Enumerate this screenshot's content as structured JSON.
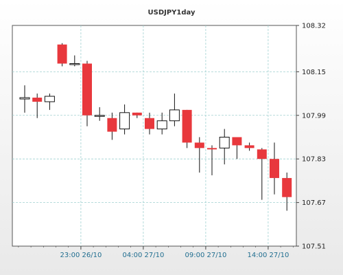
{
  "chart_data": {
    "type": "candlestick",
    "title": "USDJPY1day",
    "xlabel": "",
    "ylabel": "",
    "grid": true,
    "legend": "none",
    "ylim": [
      107.51,
      108.32
    ],
    "y_ticks": [
      "108.32",
      "108.15",
      "107.99",
      "107.83",
      "107.67",
      "107.51"
    ],
    "x_tick_labels": [
      {
        "index": 4.5,
        "label": "23:00 26/10"
      },
      {
        "index": 9.5,
        "label": "04:00 27/10"
      },
      {
        "index": 14.5,
        "label": "09:00 27/10"
      },
      {
        "index": 19.5,
        "label": "14:00 27/10"
      }
    ],
    "colors": {
      "up": "#ffffff",
      "down": "#e8383d",
      "outline": "#111111",
      "grid": "#9fd0d0",
      "axis": "#444444"
    },
    "candles": [
      {
        "open": 108.05,
        "high": 108.1,
        "low": 108.0,
        "close": 108.055
      },
      {
        "open": 108.055,
        "high": 108.07,
        "low": 107.98,
        "close": 108.04
      },
      {
        "open": 108.04,
        "high": 108.07,
        "low": 108.01,
        "close": 108.06
      },
      {
        "open": 108.25,
        "high": 108.255,
        "low": 108.17,
        "close": 108.18
      },
      {
        "open": 108.18,
        "high": 108.21,
        "low": 108.17,
        "close": 108.18
      },
      {
        "open": 108.18,
        "high": 108.19,
        "low": 107.95,
        "close": 107.99
      },
      {
        "open": 107.99,
        "high": 108.02,
        "low": 107.97,
        "close": 107.99
      },
      {
        "open": 107.98,
        "high": 108.0,
        "low": 107.9,
        "close": 107.93
      },
      {
        "open": 107.94,
        "high": 108.03,
        "low": 107.92,
        "close": 108.0
      },
      {
        "open": 108.0,
        "high": 108.0,
        "low": 107.98,
        "close": 107.99
      },
      {
        "open": 107.98,
        "high": 108.0,
        "low": 107.92,
        "close": 107.94
      },
      {
        "open": 107.94,
        "high": 108.0,
        "low": 107.92,
        "close": 107.97
      },
      {
        "open": 107.97,
        "high": 108.07,
        "low": 107.95,
        "close": 108.01
      },
      {
        "open": 108.01,
        "high": 108.01,
        "low": 107.87,
        "close": 107.89
      },
      {
        "open": 107.89,
        "high": 107.91,
        "low": 107.78,
        "close": 107.87
      },
      {
        "open": 107.87,
        "high": 107.88,
        "low": 107.77,
        "close": 107.865
      },
      {
        "open": 107.87,
        "high": 107.94,
        "low": 107.81,
        "close": 107.91
      },
      {
        "open": 107.91,
        "high": 107.91,
        "low": 107.83,
        "close": 107.88
      },
      {
        "open": 107.88,
        "high": 107.89,
        "low": 107.86,
        "close": 107.87
      },
      {
        "open": 107.865,
        "high": 107.87,
        "low": 107.68,
        "close": 107.83
      },
      {
        "open": 107.83,
        "high": 107.89,
        "low": 107.7,
        "close": 107.76
      },
      {
        "open": 107.76,
        "high": 107.78,
        "low": 107.64,
        "close": 107.69
      }
    ]
  }
}
